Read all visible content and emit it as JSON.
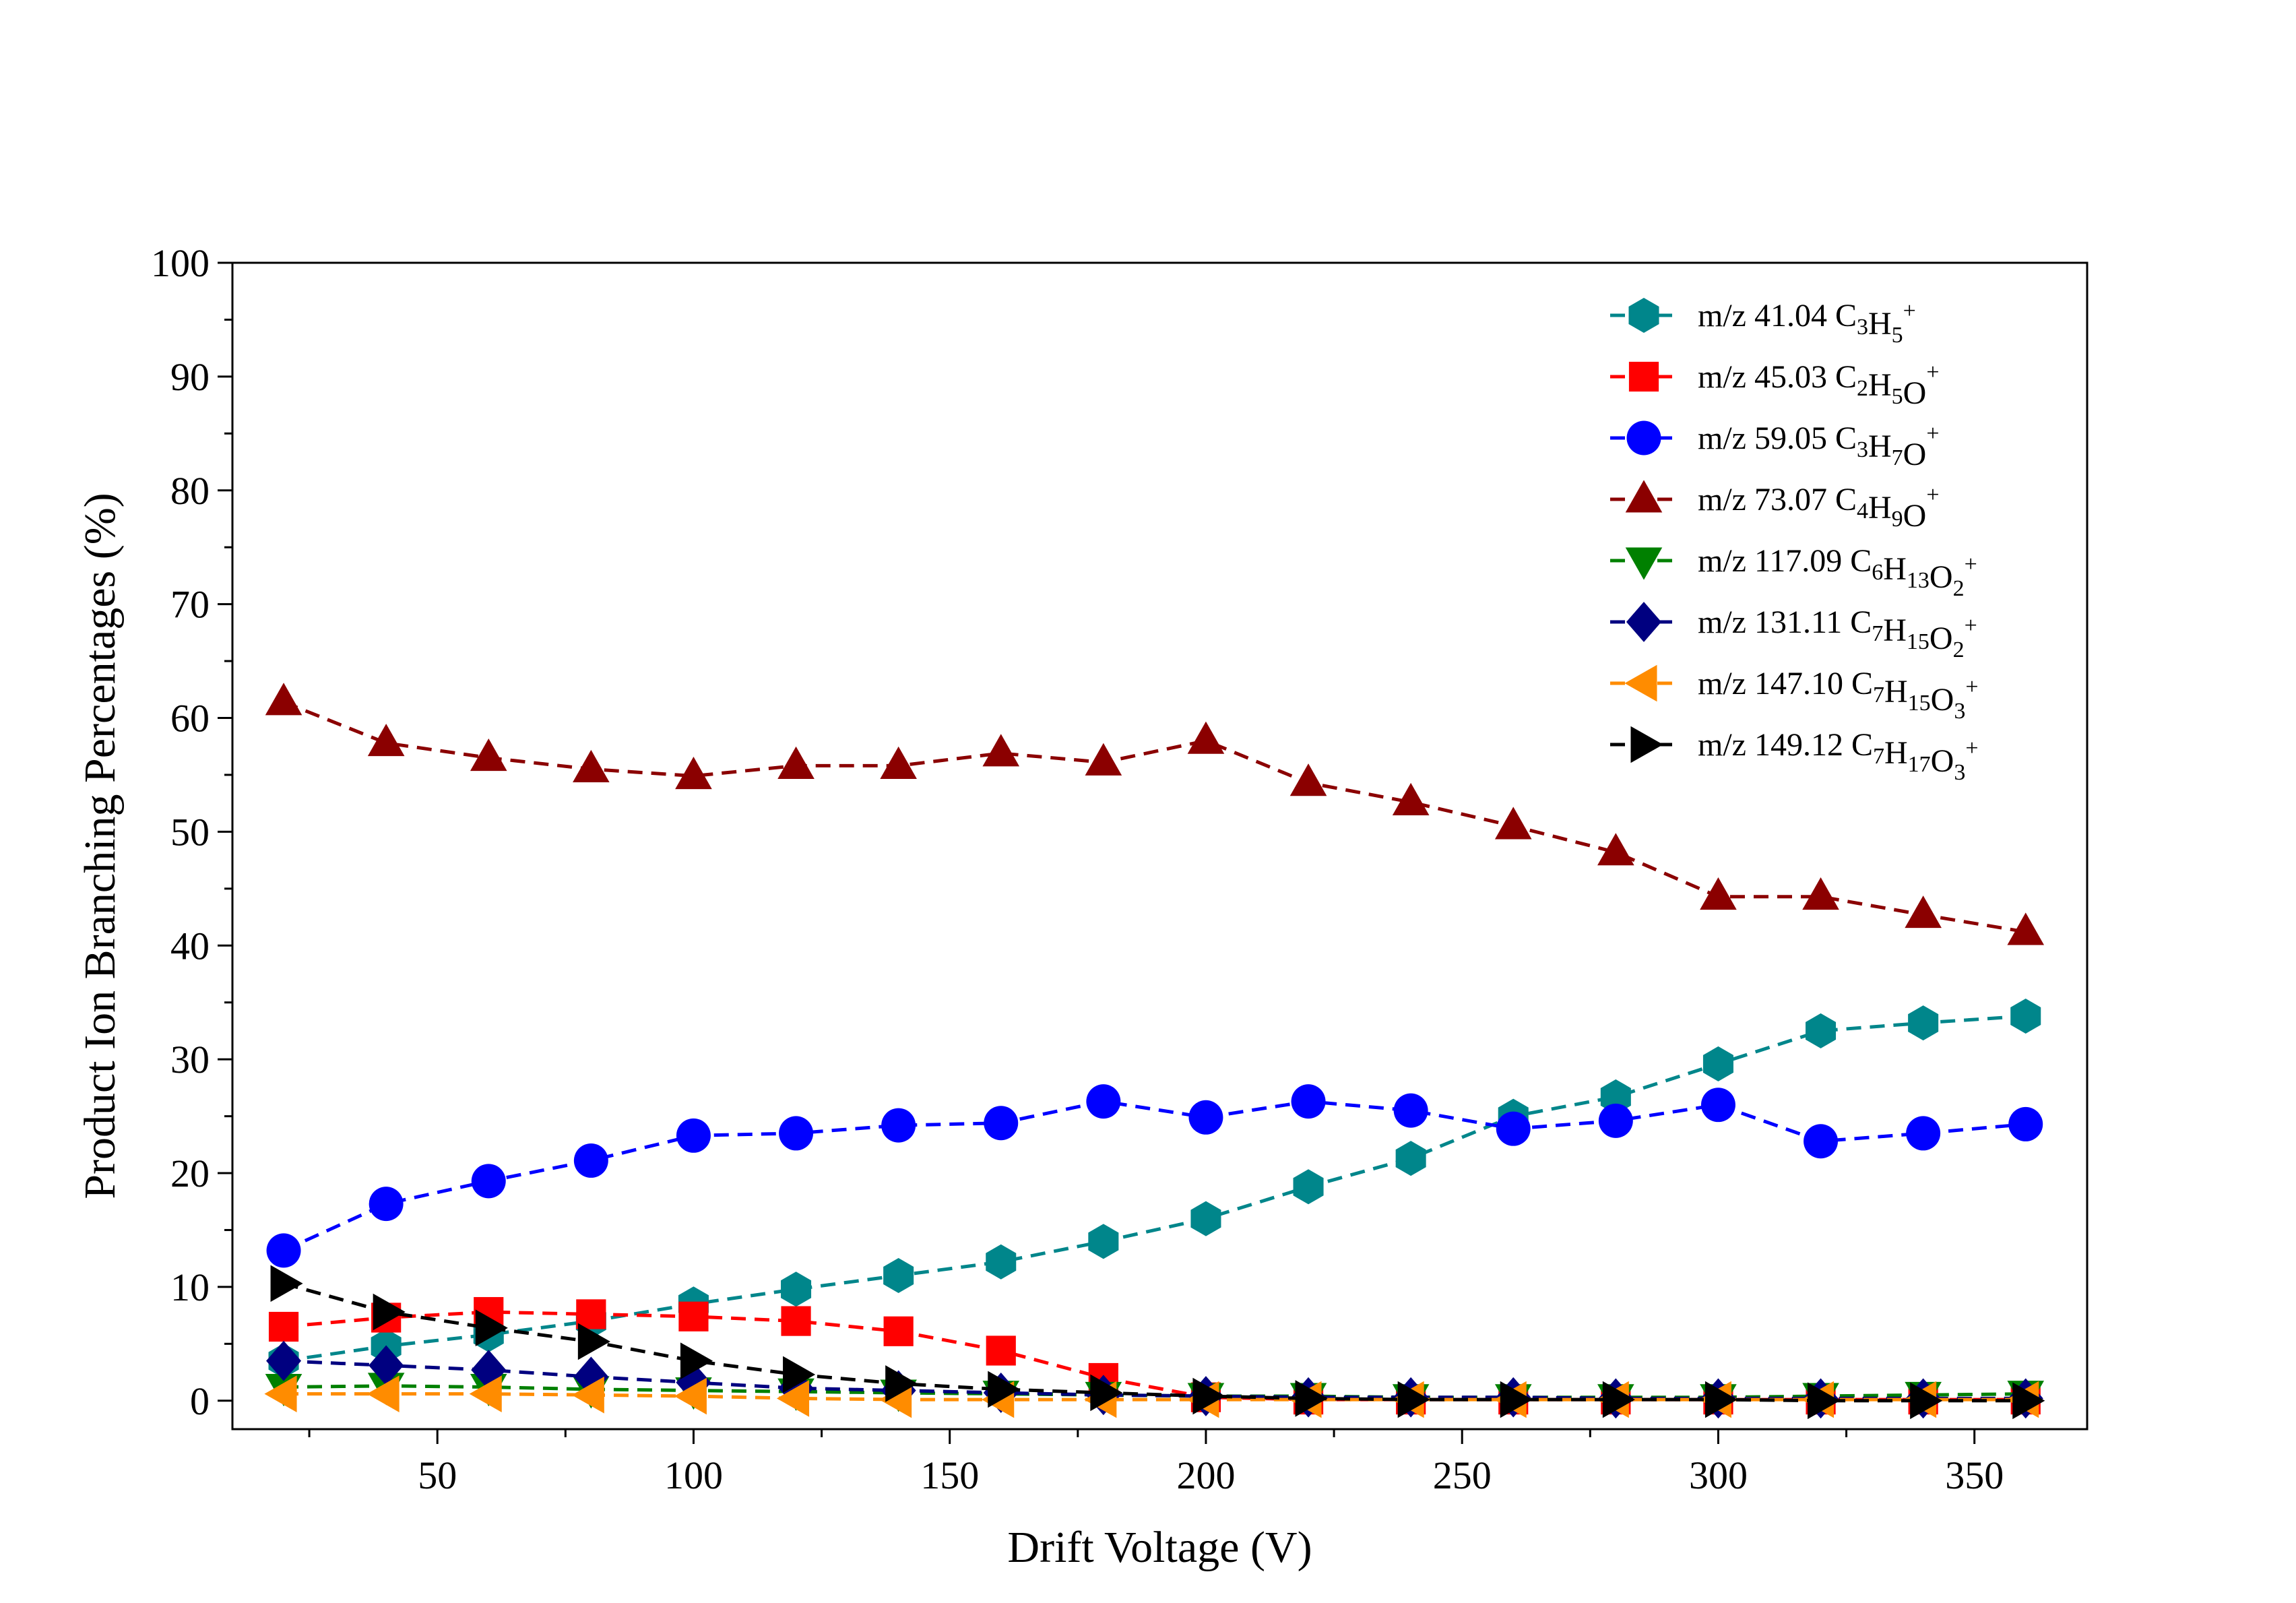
{
  "chart_data": {
    "type": "line",
    "xlabel": "Drift Voltage (V)",
    "ylabel": "Product Ion Branching Percentages (%)",
    "xlim": [
      10,
      372
    ],
    "ylim": [
      -2.5,
      100
    ],
    "xticks": [
      50,
      100,
      150,
      200,
      250,
      300,
      350
    ],
    "yticks": [
      0,
      10,
      20,
      30,
      40,
      50,
      60,
      70,
      80,
      90,
      100
    ],
    "x": [
      20,
      40,
      60,
      80,
      100,
      120,
      140,
      160,
      180,
      200,
      220,
      240,
      260,
      280,
      300,
      320,
      340,
      360
    ],
    "grid": false,
    "legend_position": "top-right",
    "series": [
      {
        "name": "m/z 41.04 C3H5+",
        "label_parts": [
          [
            "m/z 41.04 C",
            ""
          ],
          [
            "3",
            "sub"
          ],
          [
            "H",
            ""
          ],
          [
            "5",
            "sub"
          ],
          [
            "+",
            "sup"
          ]
        ],
        "color": "#00868B",
        "marker": "hexagon",
        "values": [
          3.5,
          4.8,
          5.8,
          7.0,
          8.5,
          9.8,
          11.0,
          12.2,
          14.0,
          16.0,
          18.8,
          21.3,
          25.0,
          26.7,
          29.6,
          32.5,
          33.2,
          33.8
        ]
      },
      {
        "name": "m/z 45.03 C2H5O+",
        "label_parts": [
          [
            "m/z 45.03 C",
            ""
          ],
          [
            "2",
            "sub"
          ],
          [
            "H",
            ""
          ],
          [
            "5",
            "sub"
          ],
          [
            "O",
            ""
          ],
          [
            "+",
            "sup"
          ]
        ],
        "color": "#FF0000",
        "marker": "square",
        "values": [
          6.5,
          7.3,
          7.8,
          7.6,
          7.4,
          7.0,
          6.1,
          4.4,
          2.0,
          0.3,
          0.1,
          0.1,
          0.1,
          0.1,
          0.1,
          0.1,
          0.1,
          0.1
        ]
      },
      {
        "name": "m/z 59.05 C3H7O+",
        "label_parts": [
          [
            "m/z 59.05 C",
            ""
          ],
          [
            "3",
            "sub"
          ],
          [
            "H",
            ""
          ],
          [
            "7",
            "sub"
          ],
          [
            "O",
            ""
          ],
          [
            "+",
            "sup"
          ]
        ],
        "color": "#0000FF",
        "marker": "circle",
        "values": [
          13.2,
          17.3,
          19.3,
          21.1,
          23.3,
          23.5,
          24.2,
          24.4,
          26.3,
          24.9,
          26.3,
          25.5,
          23.9,
          24.6,
          26.0,
          22.8,
          23.5,
          24.3
        ]
      },
      {
        "name": "m/z 73.07 C4H9O+",
        "label_parts": [
          [
            "m/z 73.07 C",
            ""
          ],
          [
            "4",
            "sub"
          ],
          [
            "H",
            ""
          ],
          [
            "9",
            "sub"
          ],
          [
            "O",
            ""
          ],
          [
            "+",
            "sup"
          ]
        ],
        "color": "#8B0000",
        "marker": "triangle-up",
        "values": [
          61.4,
          57.8,
          56.5,
          55.5,
          54.9,
          55.8,
          55.8,
          56.9,
          56.1,
          58.0,
          54.3,
          52.6,
          50.5,
          48.2,
          44.3,
          44.3,
          42.7,
          41.2
        ]
      },
      {
        "name": "m/z 117.09 C6H13O2+",
        "label_parts": [
          [
            "m/z 117.09 C",
            ""
          ],
          [
            "6",
            "sub"
          ],
          [
            "H",
            ""
          ],
          [
            "13",
            "sub"
          ],
          [
            "O",
            ""
          ],
          [
            "2",
            "sub"
          ],
          [
            "+",
            "sup"
          ]
        ],
        "color": "#008000",
        "marker": "triangle-down",
        "values": [
          1.2,
          1.3,
          1.2,
          1.0,
          0.9,
          0.8,
          0.7,
          0.6,
          0.5,
          0.4,
          0.4,
          0.3,
          0.3,
          0.3,
          0.3,
          0.4,
          0.5,
          0.6
        ]
      },
      {
        "name": "m/z 131.11 C7H15O2+",
        "label_parts": [
          [
            "m/z 131.11 C",
            ""
          ],
          [
            "7",
            "sub"
          ],
          [
            "H",
            ""
          ],
          [
            "15",
            "sub"
          ],
          [
            "O",
            ""
          ],
          [
            "2",
            "sub"
          ],
          [
            "+",
            "sup"
          ]
        ],
        "color": "#000080",
        "marker": "diamond",
        "values": [
          3.5,
          3.1,
          2.7,
          2.1,
          1.6,
          1.1,
          0.9,
          0.7,
          0.5,
          0.4,
          0.3,
          0.3,
          0.3,
          0.2,
          0.2,
          0.2,
          0.2,
          0.2
        ]
      },
      {
        "name": "m/z 147.10 C7H15O3+",
        "label_parts": [
          [
            "m/z 147.10 C",
            ""
          ],
          [
            "7",
            "sub"
          ],
          [
            "H",
            ""
          ],
          [
            "15",
            "sub"
          ],
          [
            "O",
            ""
          ],
          [
            "3",
            "sub"
          ],
          [
            "+",
            "sup"
          ]
        ],
        "color": "#FF8C00",
        "marker": "triangle-left",
        "values": [
          0.6,
          0.6,
          0.6,
          0.5,
          0.4,
          0.2,
          0.1,
          0.1,
          0.1,
          0.1,
          0.1,
          0.1,
          0.1,
          0.1,
          0.1,
          0.1,
          0.1,
          0.1
        ]
      },
      {
        "name": "m/z 149.12 C7H17O3+",
        "label_parts": [
          [
            "m/z 149.12 C",
            ""
          ],
          [
            "7",
            "sub"
          ],
          [
            "H",
            ""
          ],
          [
            "17",
            "sub"
          ],
          [
            "O",
            ""
          ],
          [
            "3",
            "sub"
          ],
          [
            "+",
            "sup"
          ]
        ],
        "color": "#000000",
        "marker": "triangle-right",
        "values": [
          10.3,
          7.8,
          6.4,
          5.2,
          3.5,
          2.3,
          1.5,
          1.0,
          0.7,
          0.4,
          0.2,
          0.1,
          0.1,
          0.1,
          0.1,
          0.0,
          0.0,
          0.0
        ]
      }
    ]
  }
}
